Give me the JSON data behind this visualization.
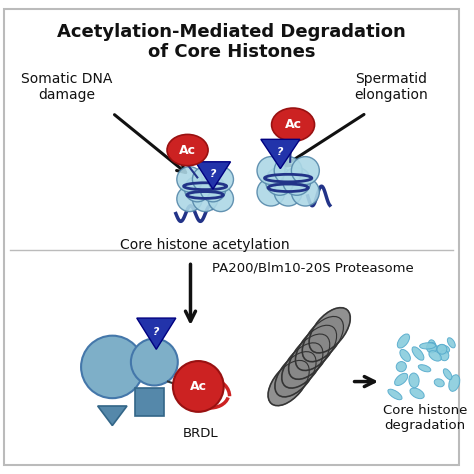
{
  "title_line1": "Acetylation-Mediated Degradation",
  "title_line2": "of Core Histones",
  "label_somatic": "Somatic DNA\ndamage",
  "label_spermatid": "Spermatid\nelongation",
  "label_acetylation": "Core histone acetylation",
  "label_proteasome": "PA200/Blm10-20S Proteasome",
  "label_brdl": "BRDL",
  "label_degradation": "Core histone\ndegradation",
  "label_ac": "Ac",
  "label_q": "?",
  "bg_color": "#ffffff",
  "border_color": "#bbbbbb",
  "red_color": "#cc2222",
  "blue_dark": "#2233aa",
  "blue_medium": "#4455bb",
  "blue_light": "#7eafc8",
  "blue_pale": "#add8e6",
  "blue_histone": "#6ba3be",
  "gray_proteasome": "#666666",
  "text_color": "#111111",
  "arrow_color": "#111111"
}
